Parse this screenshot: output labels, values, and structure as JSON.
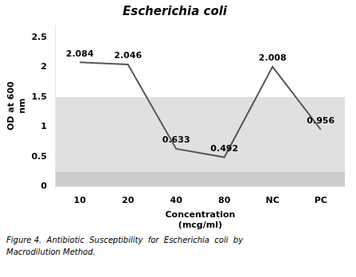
{
  "chart_data": {
    "type": "line",
    "title": "Escherichia coli",
    "xlabel": "Concentration\n(mcg/ml)",
    "ylabel": "OD at 600\nnm",
    "categories": [
      "10",
      "20",
      "40",
      "80",
      "NC",
      "PC"
    ],
    "values": [
      2.084,
      2.046,
      0.633,
      0.492,
      2.008,
      0.956
    ],
    "color": "#555555",
    "ylim": [
      0,
      2.7
    ],
    "yticks": [
      0,
      0.5,
      1.0,
      1.5,
      2.0,
      2.5
    ],
    "grid": false,
    "data_labels": true,
    "bands": [
      {
        "ymin": 0,
        "ymax": 0.25,
        "color": "#cccccc"
      },
      {
        "ymin": 0.25,
        "ymax": 1.5,
        "color": "#e0e0e0"
      },
      {
        "ymin": 1.5,
        "ymax": 2.7,
        "color": "#ffffff"
      }
    ],
    "caption": [
      "Figure 4.  Antibiotic  Susceptibility  for  Escherichia  coli  by",
      "Macrodilution Method."
    ]
  }
}
